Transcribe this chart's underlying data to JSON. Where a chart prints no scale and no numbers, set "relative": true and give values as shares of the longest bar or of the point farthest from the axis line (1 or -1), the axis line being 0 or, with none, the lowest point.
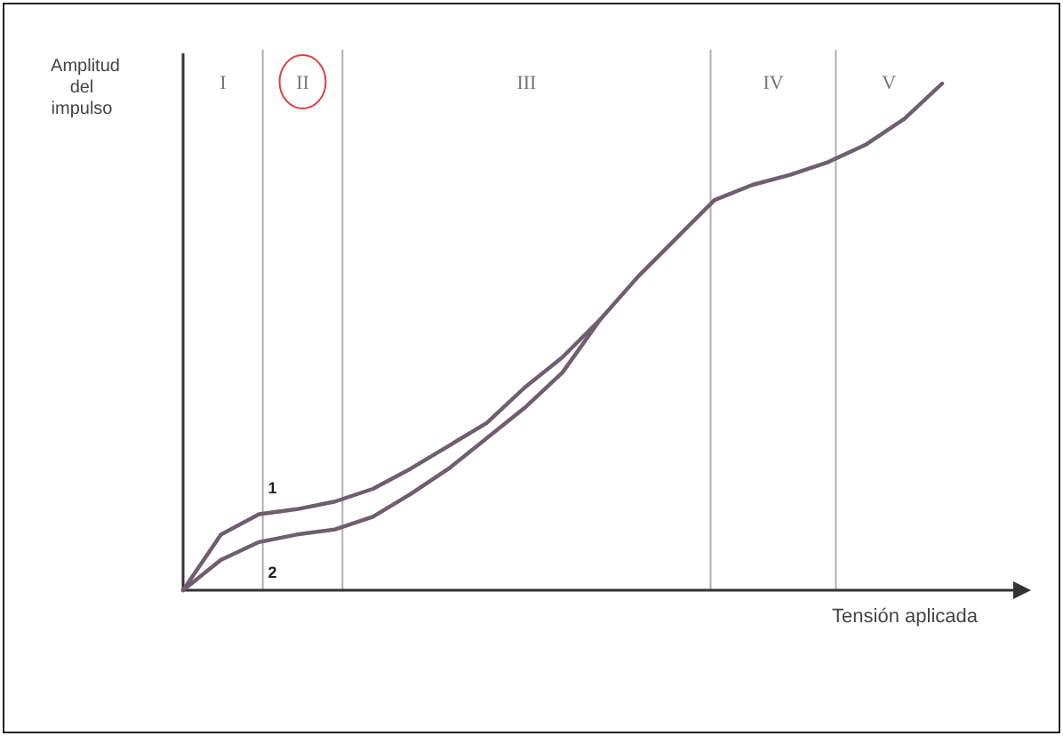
{
  "chart_data": {
    "type": "line",
    "relative": true,
    "xlabel": "Tensión aplicada",
    "ylabel": "Amplitud del impulso",
    "line_style": "solid",
    "categories": [
      null,
      null,
      null,
      null,
      null,
      null,
      null,
      null,
      null,
      null,
      null,
      null,
      null,
      null,
      null,
      null,
      null,
      null,
      null,
      null,
      null
    ],
    "series": [
      {
        "name": "1",
        "color": "#6e5e6e",
        "values": [
          0,
          0.11,
          0.15,
          0.16,
          0.175,
          0.2,
          0.24,
          0.285,
          0.33,
          0.4,
          0.46,
          0.535,
          0.62,
          0.695,
          0.77,
          0.8,
          0.82,
          0.845,
          0.88,
          0.93,
          1
        ]
      },
      {
        "name": "2",
        "color": "#6e5e6e",
        "values": [
          0,
          0.06,
          0.095,
          0.11,
          0.12,
          0.145,
          0.19,
          0.24,
          0.3,
          0.36,
          0.43,
          0.535,
          null,
          null,
          null,
          null,
          null,
          null,
          null,
          null,
          null
        ]
      }
    ],
    "annotations": [
      "I",
      "II",
      "III",
      "IV",
      "V"
    ]
  }
}
